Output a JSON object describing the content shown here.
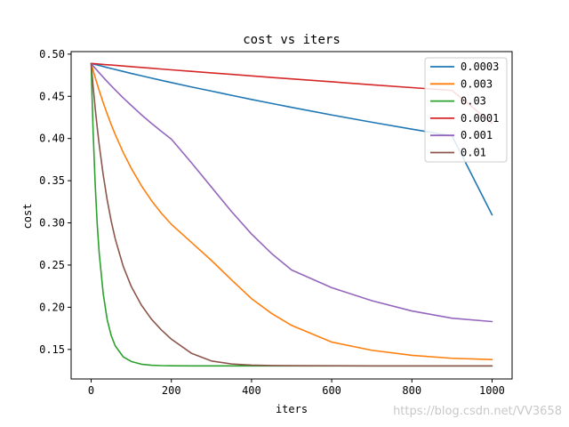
{
  "chart_data": {
    "type": "line",
    "title": "cost vs iters",
    "xlabel": "iters",
    "ylabel": "cost",
    "xlim": [
      -50,
      1050
    ],
    "ylim": [
      0.115,
      0.503
    ],
    "xticks": [
      0,
      200,
      400,
      600,
      800,
      1000
    ],
    "yticks": [
      0.15,
      0.2,
      0.25,
      0.3,
      0.35,
      0.4,
      0.45,
      0.5
    ],
    "ytick_labels": [
      "0.15",
      "0.20",
      "0.25",
      "0.30",
      "0.35",
      "0.40",
      "0.45",
      "0.50"
    ],
    "legend_position": "top-right",
    "grid": false,
    "x": [
      0,
      2,
      5,
      10,
      15,
      20,
      30,
      40,
      50,
      60,
      80,
      100,
      125,
      150,
      175,
      200,
      250,
      300,
      350,
      400,
      450,
      500,
      600,
      700,
      800,
      900,
      1000
    ],
    "series": [
      {
        "name": "0.0003",
        "color": "#1f77b4",
        "values": [
          0.489,
          0.4887,
          0.4884,
          0.4878,
          0.4872,
          0.4866,
          0.4854,
          0.4841,
          0.483,
          0.4818,
          0.4795,
          0.4771,
          0.4744,
          0.4716,
          0.4689,
          0.4663,
          0.4611,
          0.4562,
          0.4512,
          0.4463,
          0.4416,
          0.4369,
          0.4279,
          0.4193,
          0.4111,
          0.4032,
          0.3095
        ]
      },
      {
        "name": "0.003",
        "color": "#ff7f0e",
        "values": [
          0.489,
          0.4855,
          0.4805,
          0.4724,
          0.4645,
          0.4569,
          0.4425,
          0.4291,
          0.4165,
          0.4047,
          0.3834,
          0.3647,
          0.3443,
          0.3267,
          0.3115,
          0.2983,
          0.2769,
          0.2555,
          0.2325,
          0.2102,
          0.1927,
          0.1785,
          0.1587,
          0.149,
          0.143,
          0.1395,
          0.138
        ]
      },
      {
        "name": "0.03",
        "color": "#2ca02c",
        "values": [
          0.489,
          0.4532,
          0.4067,
          0.346,
          0.2992,
          0.2644,
          0.2162,
          0.1852,
          0.1664,
          0.1543,
          0.1412,
          0.1357,
          0.1325,
          0.1313,
          0.1308,
          0.1306,
          0.1305,
          0.1305,
          0.1305,
          0.1305,
          0.1305,
          0.1305,
          0.1305,
          0.1305,
          0.1305,
          0.1305,
          0.1305
        ]
      },
      {
        "name": "0.0001",
        "color": "#d62728",
        "values": [
          0.489,
          0.4889,
          0.4888,
          0.4886,
          0.4884,
          0.4882,
          0.4878,
          0.4874,
          0.4871,
          0.4867,
          0.4859,
          0.4851,
          0.4842,
          0.4833,
          0.4823,
          0.4814,
          0.4796,
          0.4778,
          0.476,
          0.4742,
          0.4724,
          0.4707,
          0.4672,
          0.4637,
          0.4603,
          0.457,
          0.418
        ]
      },
      {
        "name": "0.001",
        "color": "#9467bd",
        "values": [
          0.489,
          0.4878,
          0.4861,
          0.4833,
          0.4806,
          0.4779,
          0.4726,
          0.4675,
          0.4625,
          0.4576,
          0.4481,
          0.4392,
          0.4283,
          0.4181,
          0.4085,
          0.3993,
          0.3713,
          0.3424,
          0.3135,
          0.2868,
          0.2637,
          0.2442,
          0.2232,
          0.2078,
          0.1956,
          0.187,
          0.183
        ]
      },
      {
        "name": "0.01",
        "color": "#8c564b",
        "values": [
          0.489,
          0.4776,
          0.4612,
          0.4362,
          0.4135,
          0.3928,
          0.357,
          0.3271,
          0.3021,
          0.2811,
          0.2484,
          0.2246,
          0.2028,
          0.1861,
          0.1732,
          0.1622,
          0.1455,
          0.1363,
          0.1328,
          0.1314,
          0.1309,
          0.1307,
          0.1306,
          0.1305,
          0.1305,
          0.1305,
          0.1305
        ]
      }
    ]
  },
  "watermark": "https://blog.csdn.net/VV3658"
}
